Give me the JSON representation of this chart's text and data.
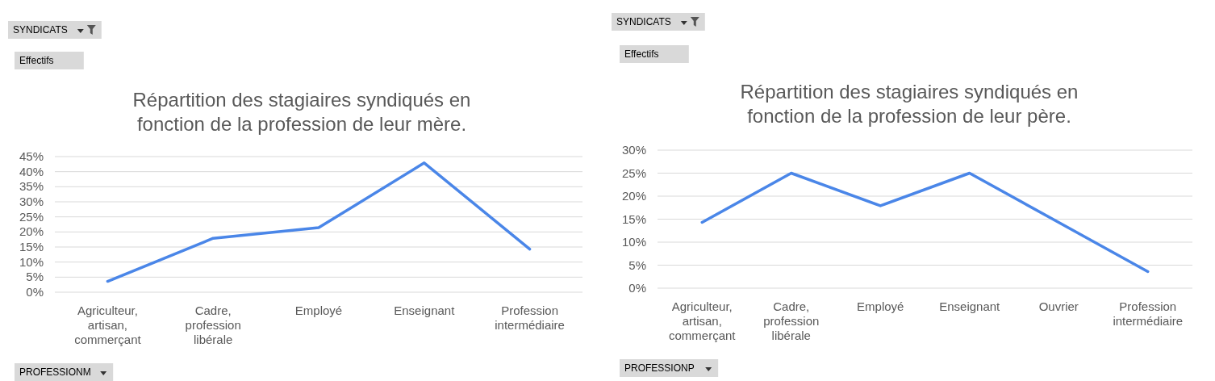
{
  "chart_data": [
    {
      "type": "line",
      "title": "Répartition des stagiaires syndiqués en fonction de la profession de leur mère.",
      "categories": [
        "Agriculteur, artisan, commerçant",
        "Cadre, profession libérale",
        "Employé",
        "Enseignant",
        "Profession intermédiaire"
      ],
      "series": [
        {
          "color": "#4a86e8",
          "values": [
            3.6,
            17.9,
            21.4,
            42.9,
            14.3
          ]
        }
      ],
      "ylim": [
        0,
        45
      ],
      "yticks": [
        {
          "value": 0,
          "label": "0%"
        },
        {
          "value": 5,
          "label": "5%"
        },
        {
          "value": 10,
          "label": "10%"
        },
        {
          "value": 15,
          "label": "15%"
        },
        {
          "value": 20,
          "label": "20%"
        },
        {
          "value": 25,
          "label": "25%"
        },
        {
          "value": 30,
          "label": "30%"
        },
        {
          "value": 35,
          "label": "35%"
        },
        {
          "value": 40,
          "label": "40%"
        },
        {
          "value": 45,
          "label": "45%"
        }
      ],
      "grid": "y",
      "marker": "none",
      "line_style": "solid",
      "annotations": [
        "SYNDICATS",
        "Effectifs",
        "PROFESSIONM"
      ]
    },
    {
      "type": "line",
      "title": "Répartition des stagiaires syndiqués en fonction de la profession de leur père.",
      "categories": [
        "Agriculteur, artisan, commerçant",
        "Cadre, profession libérale",
        "Employé",
        "Enseignant",
        "Ouvrier",
        "Profession intermédiaire"
      ],
      "series": [
        {
          "color": "#4a86e8",
          "values": [
            14.3,
            25.0,
            17.9,
            25.0,
            14.3,
            3.6
          ]
        }
      ],
      "ylim": [
        0,
        30
      ],
      "yticks": [
        {
          "value": 0,
          "label": "0%"
        },
        {
          "value": 5,
          "label": "5%"
        },
        {
          "value": 10,
          "label": "10%"
        },
        {
          "value": 15,
          "label": "15%"
        },
        {
          "value": 20,
          "label": "20%"
        },
        {
          "value": 25,
          "label": "25%"
        },
        {
          "value": 30,
          "label": "30%"
        }
      ],
      "grid": "y",
      "marker": "none",
      "line_style": "solid",
      "annotations": [
        "SYNDICATS",
        "Effectifs",
        "PROFESSIONP"
      ]
    }
  ]
}
